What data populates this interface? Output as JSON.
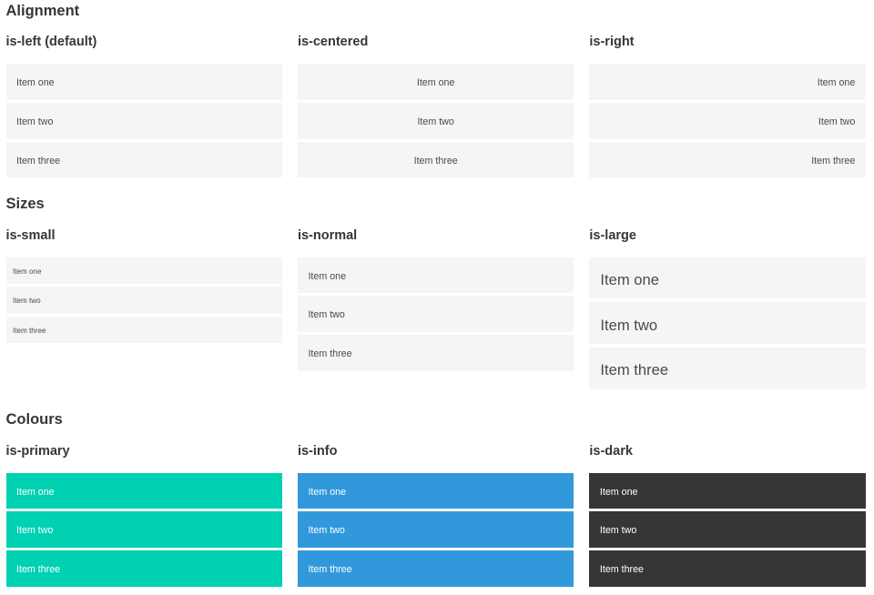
{
  "colors": {
    "page_background": "#ffffff",
    "heading_text": "#363636",
    "item_background_light": "#f5f5f5",
    "item_text_light": "#4a4a4a",
    "item_text_on_color": "#ffffff",
    "primary": "#00d1b2",
    "info": "#3298dc",
    "dark": "#363636"
  },
  "sections": [
    {
      "id": "alignment",
      "title": "Alignment",
      "groups": [
        {
          "label": "is-left (default)",
          "align": "left",
          "size": "normal",
          "variant": "light",
          "items": [
            "Item one",
            "Item two",
            "Item three"
          ]
        },
        {
          "label": "is-centered",
          "align": "center",
          "size": "normal",
          "variant": "light",
          "items": [
            "Item one",
            "Item two",
            "Item three"
          ]
        },
        {
          "label": "is-right",
          "align": "right",
          "size": "normal",
          "variant": "light",
          "items": [
            "Item one",
            "Item two",
            "Item three"
          ]
        }
      ]
    },
    {
      "id": "sizes",
      "title": "Sizes",
      "groups": [
        {
          "label": "is-small",
          "align": "left",
          "size": "small",
          "variant": "light",
          "items": [
            "Item one",
            "Item two",
            "Item three"
          ]
        },
        {
          "label": "is-normal",
          "align": "left",
          "size": "normal",
          "variant": "light",
          "items": [
            "Item one",
            "Item two",
            "Item three"
          ]
        },
        {
          "label": "is-large",
          "align": "left",
          "size": "large",
          "variant": "light",
          "items": [
            "Item one",
            "Item two",
            "Item three"
          ]
        }
      ]
    },
    {
      "id": "colours",
      "title": "Colours",
      "groups": [
        {
          "label": "is-primary",
          "align": "left",
          "size": "normal",
          "variant": "primary",
          "items": [
            "Item one",
            "Item two",
            "Item three"
          ]
        },
        {
          "label": "is-info",
          "align": "left",
          "size": "normal",
          "variant": "info",
          "items": [
            "Item one",
            "Item two",
            "Item three"
          ]
        },
        {
          "label": "is-dark",
          "align": "left",
          "size": "normal",
          "variant": "dark",
          "items": [
            "Item one",
            "Item two",
            "Item three"
          ]
        }
      ]
    }
  ]
}
